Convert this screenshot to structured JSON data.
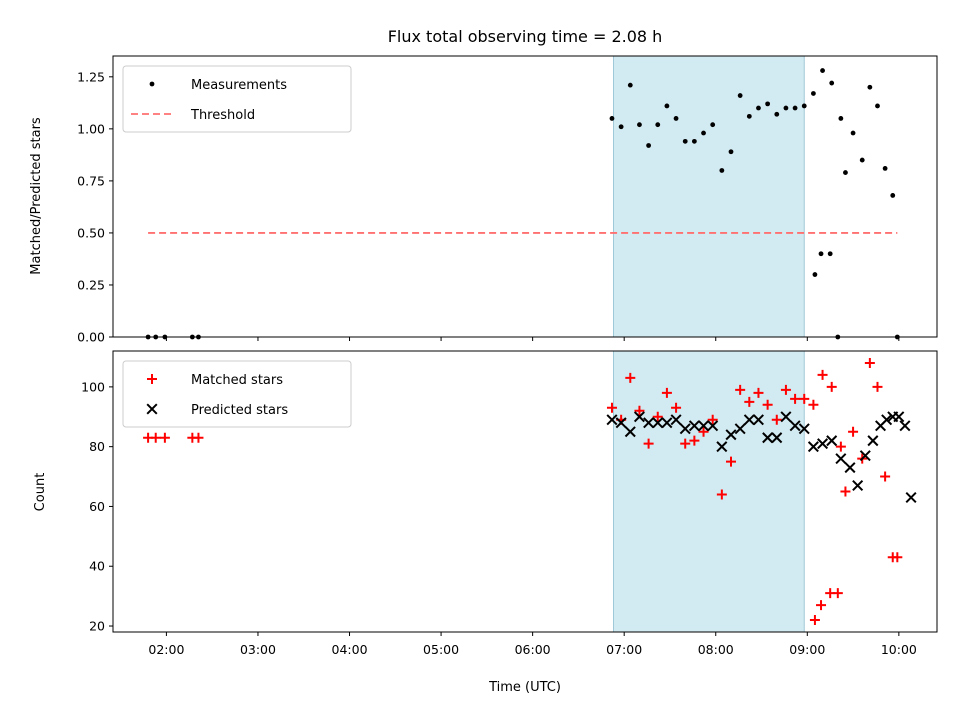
{
  "chart_data": [
    {
      "type": "scatter",
      "title": "Flux total observing time = 2.08 h",
      "xlabel": "",
      "ylabel": "Matched/Predicted stars",
      "xlim": [
        "01:25",
        "10:25"
      ],
      "ylim": [
        0,
        1.35
      ],
      "yticks": [
        0.0,
        0.25,
        0.5,
        0.75,
        1.0,
        1.25
      ],
      "ytick_labels": [
        "0.00",
        "0.25",
        "0.50",
        "0.75",
        "1.00",
        "1.25"
      ],
      "highlight_span": {
        "from": "06:53",
        "to": "08:58",
        "color": "#add8e6"
      },
      "legend_position": "upper-left",
      "series": [
        {
          "name": "Measurements",
          "color": "#000000",
          "marker": "dot",
          "points": [
            {
              "x": "01:48",
              "y": 0.0
            },
            {
              "x": "01:53",
              "y": 0.0
            },
            {
              "x": "01:59",
              "y": 0.0
            },
            {
              "x": "02:17",
              "y": 0.0
            },
            {
              "x": "02:21",
              "y": 0.0
            },
            {
              "x": "06:52",
              "y": 1.05
            },
            {
              "x": "06:58",
              "y": 1.01
            },
            {
              "x": "07:04",
              "y": 1.21
            },
            {
              "x": "07:10",
              "y": 1.02
            },
            {
              "x": "07:16",
              "y": 0.92
            },
            {
              "x": "07:22",
              "y": 1.02
            },
            {
              "x": "07:28",
              "y": 1.11
            },
            {
              "x": "07:34",
              "y": 1.05
            },
            {
              "x": "07:40",
              "y": 0.94
            },
            {
              "x": "07:46",
              "y": 0.94
            },
            {
              "x": "07:52",
              "y": 0.98
            },
            {
              "x": "07:58",
              "y": 1.02
            },
            {
              "x": "08:04",
              "y": 0.8
            },
            {
              "x": "08:10",
              "y": 0.89
            },
            {
              "x": "08:16",
              "y": 1.16
            },
            {
              "x": "08:22",
              "y": 1.06
            },
            {
              "x": "08:28",
              "y": 1.1
            },
            {
              "x": "08:34",
              "y": 1.12
            },
            {
              "x": "08:40",
              "y": 1.07
            },
            {
              "x": "08:46",
              "y": 1.1
            },
            {
              "x": "08:52",
              "y": 1.1
            },
            {
              "x": "08:58",
              "y": 1.11
            },
            {
              "x": "09:04",
              "y": 1.17
            },
            {
              "x": "09:10",
              "y": 1.28
            },
            {
              "x": "09:16",
              "y": 1.22
            },
            {
              "x": "09:22",
              "y": 1.05
            },
            {
              "x": "09:05",
              "y": 0.3
            },
            {
              "x": "09:09",
              "y": 0.4
            },
            {
              "x": "09:15",
              "y": 0.4
            },
            {
              "x": "09:20",
              "y": 0.0
            },
            {
              "x": "09:25",
              "y": 0.79
            },
            {
              "x": "09:30",
              "y": 0.98
            },
            {
              "x": "09:36",
              "y": 0.85
            },
            {
              "x": "09:41",
              "y": 1.2
            },
            {
              "x": "09:46",
              "y": 1.11
            },
            {
              "x": "09:51",
              "y": 0.81
            },
            {
              "x": "09:56",
              "y": 0.68
            },
            {
              "x": "09:59",
              "y": 0.0
            }
          ]
        },
        {
          "name": "Threshold",
          "color": "#ff7070",
          "style": "dashed",
          "x": [
            "01:48",
            "09:59"
          ],
          "values": [
            0.5,
            0.5
          ]
        }
      ]
    },
    {
      "type": "scatter",
      "title": "",
      "xlabel": "Time (UTC)",
      "ylabel": "Count",
      "xlim": [
        "01:25",
        "10:25"
      ],
      "ylim": [
        18,
        112
      ],
      "yticks": [
        20,
        40,
        60,
        80,
        100
      ],
      "ytick_labels": [
        "20",
        "40",
        "60",
        "80",
        "100"
      ],
      "xticks": [
        "02:00",
        "03:00",
        "04:00",
        "05:00",
        "06:00",
        "07:00",
        "08:00",
        "09:00",
        "10:00"
      ],
      "xtick_labels": [
        "02:00",
        "03:00",
        "04:00",
        "05:00",
        "06:00",
        "07:00",
        "08:00",
        "09:00",
        "10:00"
      ],
      "highlight_span": {
        "from": "06:53",
        "to": "08:58",
        "color": "#add8e6"
      },
      "legend_position": "upper-left",
      "series": [
        {
          "name": "Matched stars",
          "color": "#ff0000",
          "marker": "plus",
          "points": [
            {
              "x": "01:48",
              "y": 83
            },
            {
              "x": "01:53",
              "y": 83
            },
            {
              "x": "01:59",
              "y": 83
            },
            {
              "x": "02:17",
              "y": 83
            },
            {
              "x": "02:21",
              "y": 83
            },
            {
              "x": "06:52",
              "y": 93
            },
            {
              "x": "06:58",
              "y": 89
            },
            {
              "x": "07:04",
              "y": 103
            },
            {
              "x": "07:10",
              "y": 92
            },
            {
              "x": "07:16",
              "y": 81
            },
            {
              "x": "07:22",
              "y": 90
            },
            {
              "x": "07:28",
              "y": 98
            },
            {
              "x": "07:34",
              "y": 93
            },
            {
              "x": "07:40",
              "y": 81
            },
            {
              "x": "07:46",
              "y": 82
            },
            {
              "x": "07:52",
              "y": 85
            },
            {
              "x": "07:58",
              "y": 89
            },
            {
              "x": "08:04",
              "y": 64
            },
            {
              "x": "08:10",
              "y": 75
            },
            {
              "x": "08:16",
              "y": 99
            },
            {
              "x": "08:22",
              "y": 95
            },
            {
              "x": "08:28",
              "y": 98
            },
            {
              "x": "08:34",
              "y": 94
            },
            {
              "x": "08:40",
              "y": 89
            },
            {
              "x": "08:46",
              "y": 99
            },
            {
              "x": "08:52",
              "y": 96
            },
            {
              "x": "08:58",
              "y": 96
            },
            {
              "x": "09:04",
              "y": 94
            },
            {
              "x": "09:10",
              "y": 104
            },
            {
              "x": "09:16",
              "y": 100
            },
            {
              "x": "09:22",
              "y": 80
            },
            {
              "x": "09:05",
              "y": 22
            },
            {
              "x": "09:09",
              "y": 27
            },
            {
              "x": "09:15",
              "y": 31
            },
            {
              "x": "09:20",
              "y": 31
            },
            {
              "x": "09:25",
              "y": 65
            },
            {
              "x": "09:30",
              "y": 85
            },
            {
              "x": "09:36",
              "y": 76
            },
            {
              "x": "09:41",
              "y": 108
            },
            {
              "x": "09:46",
              "y": 100
            },
            {
              "x": "09:51",
              "y": 70
            },
            {
              "x": "09:56",
              "y": 43
            },
            {
              "x": "09:59",
              "y": 43
            }
          ]
        },
        {
          "name": "Predicted stars",
          "color": "#000000",
          "marker": "x",
          "points": [
            {
              "x": "06:52",
              "y": 89
            },
            {
              "x": "06:58",
              "y": 88
            },
            {
              "x": "07:04",
              "y": 85
            },
            {
              "x": "07:10",
              "y": 90
            },
            {
              "x": "07:16",
              "y": 88
            },
            {
              "x": "07:22",
              "y": 88
            },
            {
              "x": "07:28",
              "y": 88
            },
            {
              "x": "07:34",
              "y": 89
            },
            {
              "x": "07:40",
              "y": 86
            },
            {
              "x": "07:46",
              "y": 87
            },
            {
              "x": "07:52",
              "y": 87
            },
            {
              "x": "07:58",
              "y": 87
            },
            {
              "x": "08:04",
              "y": 80
            },
            {
              "x": "08:10",
              "y": 84
            },
            {
              "x": "08:16",
              "y": 86
            },
            {
              "x": "08:22",
              "y": 89
            },
            {
              "x": "08:28",
              "y": 89
            },
            {
              "x": "08:34",
              "y": 83
            },
            {
              "x": "08:40",
              "y": 83
            },
            {
              "x": "08:46",
              "y": 90
            },
            {
              "x": "08:52",
              "y": 87
            },
            {
              "x": "08:58",
              "y": 86
            },
            {
              "x": "09:04",
              "y": 80
            },
            {
              "x": "09:10",
              "y": 81
            },
            {
              "x": "09:16",
              "y": 82
            },
            {
              "x": "09:22",
              "y": 76
            },
            {
              "x": "09:28",
              "y": 73
            },
            {
              "x": "09:33",
              "y": 67
            },
            {
              "x": "09:38",
              "y": 77
            },
            {
              "x": "09:43",
              "y": 82
            },
            {
              "x": "09:48",
              "y": 87
            },
            {
              "x": "09:52",
              "y": 89
            },
            {
              "x": "09:56",
              "y": 90
            },
            {
              "x": "10:00",
              "y": 90
            },
            {
              "x": "10:04",
              "y": 87
            },
            {
              "x": "10:08",
              "y": 63
            }
          ]
        }
      ]
    }
  ]
}
